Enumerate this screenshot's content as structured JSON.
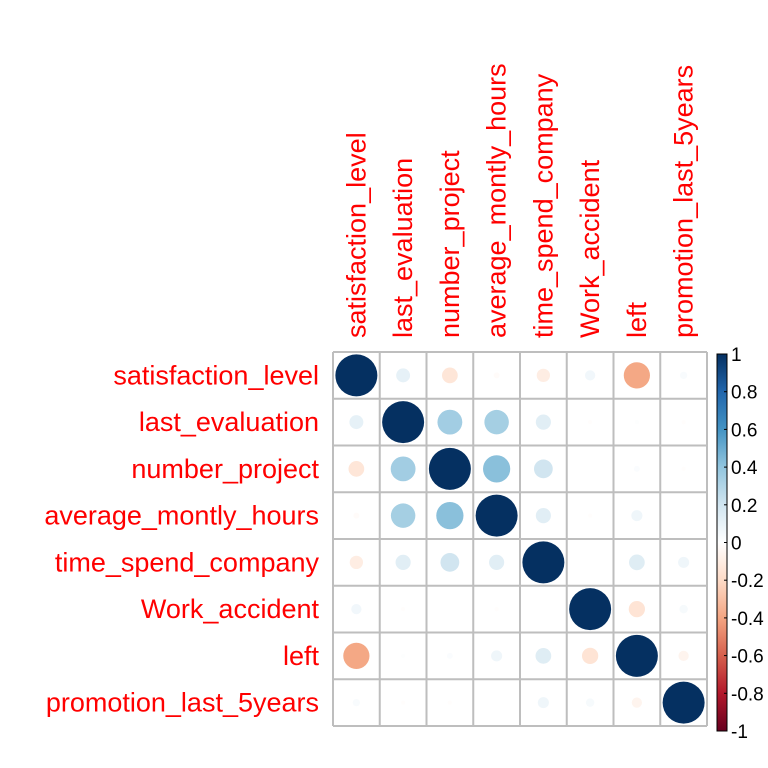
{
  "chart_data": {
    "type": "heatmap",
    "style": "corrplot-circle",
    "variables": [
      "satisfaction_level",
      "last_evaluation",
      "number_project",
      "average_montly_hours",
      "time_spend_company",
      "Work_accident",
      "left",
      "promotion_last_5years"
    ],
    "values": [
      [
        1.0,
        0.11,
        -0.14,
        -0.02,
        -0.1,
        0.06,
        -0.39,
        0.03
      ],
      [
        0.11,
        1.0,
        0.35,
        0.34,
        0.13,
        -0.01,
        0.01,
        -0.01
      ],
      [
        -0.14,
        0.35,
        1.0,
        0.42,
        0.2,
        0.0,
        0.02,
        -0.01
      ],
      [
        -0.02,
        0.34,
        0.42,
        1.0,
        0.13,
        -0.01,
        0.07,
        0.0
      ],
      [
        -0.1,
        0.13,
        0.2,
        0.13,
        1.0,
        0.0,
        0.14,
        0.07
      ],
      [
        0.06,
        -0.01,
        0.0,
        -0.01,
        0.0,
        1.0,
        -0.15,
        0.04
      ],
      [
        -0.39,
        0.01,
        0.02,
        0.07,
        0.14,
        -0.15,
        1.0,
        -0.06
      ],
      [
        0.03,
        -0.01,
        -0.01,
        0.0,
        0.07,
        0.04,
        -0.06,
        1.0
      ]
    ],
    "color_scale": {
      "range": [
        -1,
        1
      ],
      "ticks": [
        "1",
        "0.8",
        "0.6",
        "0.4",
        "0.2",
        "0",
        "-0.2",
        "-0.4",
        "-0.6",
        "-0.8",
        "-1"
      ],
      "colors": [
        "#67001F",
        "#B2182B",
        "#D6604D",
        "#F4A582",
        "#FDDBC7",
        "#FFFFFF",
        "#D1E5F0",
        "#92C5DE",
        "#4393C3",
        "#2166AC",
        "#053061"
      ]
    },
    "label_color": "#FF0000",
    "grid_color": "#BEBEBE"
  }
}
